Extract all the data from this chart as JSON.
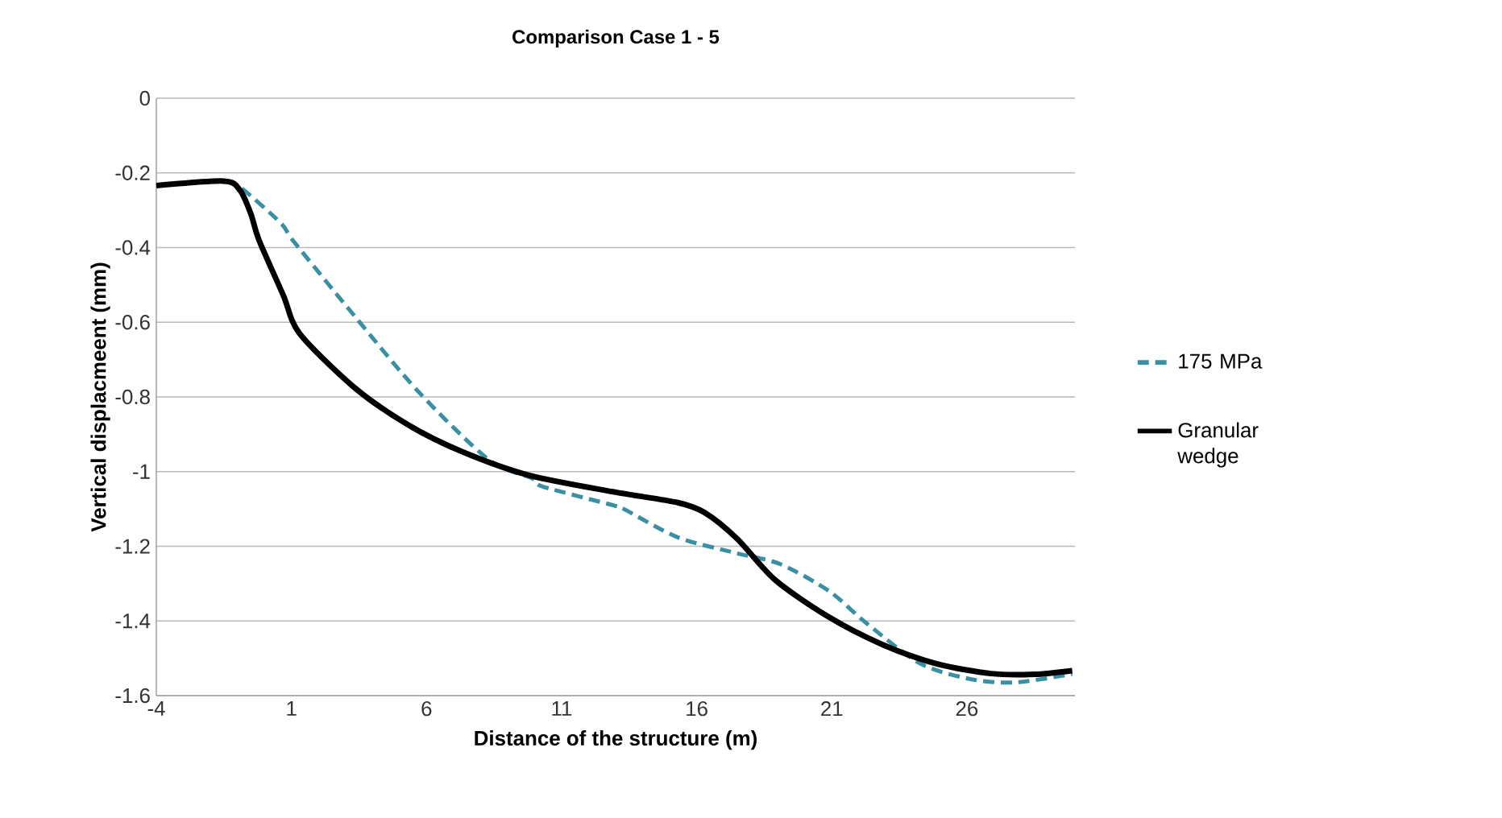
{
  "chart_data": {
    "type": "line",
    "title": "Comparison Case 1 - 5",
    "xlabel": "Distance of the structure (m)",
    "ylabel": "Vertical displacmeent (mm)",
    "xlim": [
      -4,
      30
    ],
    "xticks": [
      -4,
      1,
      6,
      11,
      16,
      21,
      26
    ],
    "ylim": [
      -1.6,
      0
    ],
    "yticks": [
      0,
      -0.2,
      -0.4,
      -0.6,
      -0.8,
      -1,
      -1.2,
      -1.4,
      -1.6
    ],
    "grid": "y",
    "legend": "right",
    "series": [
      {
        "name": "175 MPa",
        "color": "#3a8fa3",
        "line_style": "dashed",
        "x": [
          -4,
          -1.5,
          -0.9,
          0.6,
          1.1,
          3.3,
          5.7,
          8.3,
          9.9,
          10.3,
          12.9,
          13.3,
          15.3,
          17.5,
          19.1,
          20.9,
          22.3,
          24.3,
          26.3,
          27.9,
          29.9
        ],
        "values": [
          -0.234,
          -0.222,
          -0.238,
          -0.334,
          -0.385,
          -0.58,
          -0.786,
          -0.968,
          -1.018,
          -1.04,
          -1.09,
          -1.1,
          -1.176,
          -1.219,
          -1.248,
          -1.32,
          -1.407,
          -1.515,
          -1.558,
          -1.564,
          -1.542
        ]
      },
      {
        "name": "Granular wedge",
        "color": "#000000",
        "line_style": "solid",
        "x": [
          -4,
          -1.5,
          -0.9,
          -0.5,
          -0.2,
          0.7,
          1.3,
          3.3,
          5.3,
          7.3,
          9.8,
          12.9,
          15.3,
          16.3,
          17.5,
          18.9,
          20.9,
          22.9,
          24.9,
          26.9,
          28.5,
          29.9
        ],
        "values": [
          -0.234,
          -0.222,
          -0.247,
          -0.31,
          -0.38,
          -0.528,
          -0.63,
          -0.773,
          -0.874,
          -0.946,
          -1.01,
          -1.054,
          -1.083,
          -1.11,
          -1.18,
          -1.29,
          -1.39,
          -1.464,
          -1.515,
          -1.541,
          -1.543,
          -1.533
        ]
      }
    ]
  }
}
